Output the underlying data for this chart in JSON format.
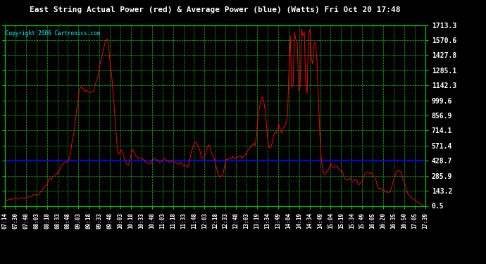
{
  "title": "East String Actual Power (red) & Average Power (blue) (Watts) Fri Oct 20 17:48",
  "copyright": "Copyright 2006 Cartronics.com",
  "ylabel_ticks": [
    0.5,
    143.2,
    285.9,
    428.7,
    571.4,
    714.1,
    856.9,
    999.6,
    1142.3,
    1285.1,
    1427.8,
    1570.6,
    1713.3
  ],
  "ymin": 0.5,
  "ymax": 1713.3,
  "avg_power": 428.7,
  "bg_color": "#000000",
  "red_line": "#ff0000",
  "blue_line": "#0000ff",
  "grid_color": "#00cc00",
  "title_color": "#ffffff",
  "tick_color": "#ffffff",
  "copyright_color": "#00ffff",
  "x_labels": [
    "07:14",
    "07:30",
    "07:48",
    "08:03",
    "08:18",
    "08:33",
    "08:48",
    "09:03",
    "09:18",
    "09:33",
    "09:48",
    "10:03",
    "10:18",
    "10:33",
    "10:48",
    "11:03",
    "11:18",
    "11:33",
    "11:48",
    "12:03",
    "12:18",
    "12:33",
    "12:48",
    "13:03",
    "13:19",
    "13:34",
    "13:49",
    "14:04",
    "14:19",
    "14:34",
    "14:49",
    "15:04",
    "15:19",
    "15:34",
    "15:49",
    "16:05",
    "16:20",
    "16:35",
    "16:50",
    "17:05",
    "17:39"
  ]
}
